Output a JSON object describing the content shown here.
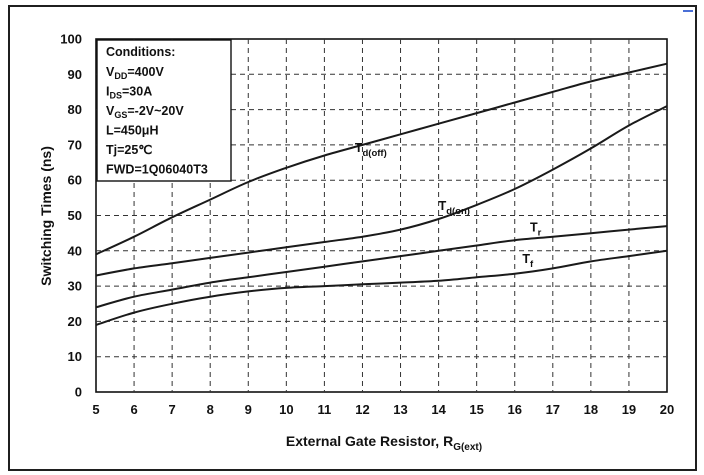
{
  "chart_data": {
    "type": "line",
    "title": "",
    "xlabel": "External Gate Resistor, R",
    "xlabel_sub": "G(ext)",
    "ylabel": "Switching Times (ns)",
    "xlim": [
      5,
      20
    ],
    "ylim": [
      0,
      100
    ],
    "x_ticks": [
      5,
      6,
      7,
      8,
      9,
      10,
      11,
      12,
      13,
      14,
      15,
      16,
      17,
      18,
      19,
      20
    ],
    "y_ticks": [
      0,
      10,
      20,
      30,
      40,
      50,
      60,
      70,
      80,
      90,
      100
    ],
    "grid": "dashed",
    "x": [
      5,
      6,
      7,
      8,
      9,
      10,
      11,
      12,
      13,
      14,
      15,
      16,
      17,
      18,
      19,
      20
    ],
    "series": [
      {
        "name": "T",
        "sub": "d(off)",
        "label_at": [
          11.8,
          68
        ],
        "values": [
          39,
          44,
          49.5,
          54.5,
          59.5,
          63.5,
          67,
          70,
          73,
          76,
          79,
          82,
          85,
          88,
          90.5,
          93
        ]
      },
      {
        "name": "T",
        "sub": "d(on)",
        "label_at": [
          14.0,
          51.5
        ],
        "values": [
          33,
          35,
          36.5,
          38,
          39.5,
          41,
          42.5,
          44,
          46,
          49,
          53,
          57.5,
          63,
          69,
          75.5,
          81
        ]
      },
      {
        "name": "T",
        "sub": "r",
        "label_at": [
          16.4,
          45.5
        ],
        "values": [
          24,
          27,
          29,
          31,
          32.5,
          34,
          35.5,
          37,
          38.5,
          40,
          41.5,
          43,
          44,
          45,
          46,
          47
        ]
      },
      {
        "name": "T",
        "sub": "f",
        "label_at": [
          16.2,
          36.5
        ],
        "values": [
          19,
          22.5,
          25,
          27,
          28.5,
          29.5,
          30,
          30.5,
          31,
          31.5,
          32.5,
          33.5,
          35,
          37,
          38.5,
          40
        ]
      }
    ]
  },
  "conditions": {
    "heading": "Conditions:",
    "lines": [
      {
        "main": "V",
        "sub": "DD",
        "rest": "=400V"
      },
      {
        "main": "I",
        "sub": "DS",
        "rest": "=30A"
      },
      {
        "main": "V",
        "sub": "GS",
        "rest": "=-2V~20V"
      },
      {
        "main": "L=450μH",
        "sub": "",
        "rest": ""
      },
      {
        "main": "Tj=25℃",
        "sub": "",
        "rest": ""
      },
      {
        "main": "FWD=1Q06040T3",
        "sub": "",
        "rest": ""
      }
    ]
  }
}
